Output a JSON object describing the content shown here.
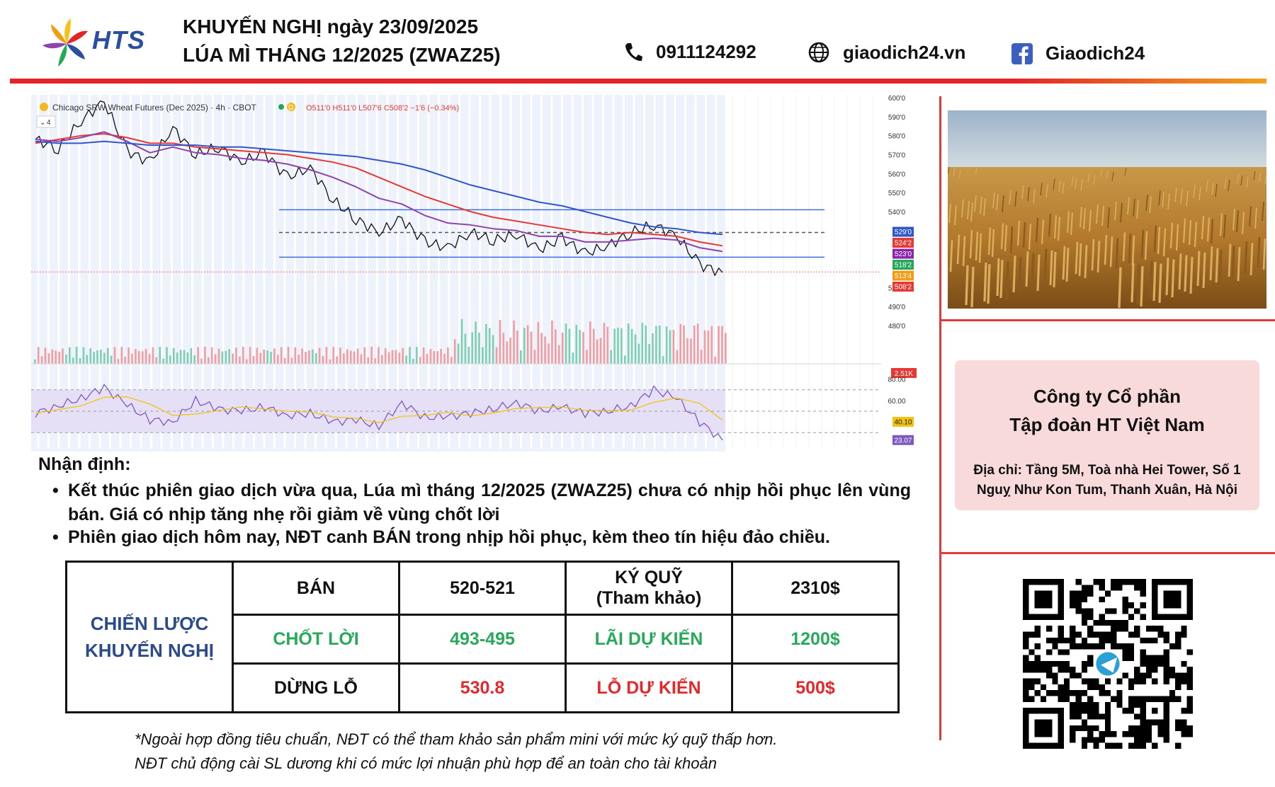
{
  "header": {
    "brand": "HTS",
    "title_line1": "KHUYẾN NGHỊ ngày 23/09/2025",
    "title_line2": "LÚA MÌ THÁNG 12/2025 (ZWAZ25)",
    "phone": "0911124292",
    "website": "giaodich24.vn",
    "facebook": "Giaodich24",
    "icons": [
      "phone-icon",
      "globe-icon",
      "facebook-icon"
    ],
    "accent_color": "#e42428"
  },
  "chart_data": {
    "type": "line",
    "title": "Chicago SRW Wheat Futures (Dec 2025) · 4h · CBOT",
    "interval_badge": "D",
    "ohlc": "O511'0 H511'0 L507'6 C508'2 −1'6 (−0.34%)",
    "indicator_count": "4",
    "y_ticks": [
      "600'0",
      "590'0",
      "580'0",
      "570'0",
      "560'0",
      "550'0",
      "540'0",
      "500'0",
      "490'0",
      "480'0"
    ],
    "ylim": [
      480,
      600
    ],
    "series": [
      {
        "values": [
          578,
          573,
          588,
          598,
          572,
          566,
          584,
          570,
          574,
          566,
          571,
          558,
          563,
          546,
          536,
          529,
          536,
          524,
          521,
          529,
          525,
          528,
          520,
          526,
          518,
          522,
          529,
          533,
          527,
          512,
          508
        ],
        "color": "#111111"
      },
      {
        "values": [
          576,
          578,
          580,
          581,
          579,
          576,
          576,
          574,
          573,
          572,
          571,
          570,
          568,
          566,
          563,
          558,
          553,
          548,
          544,
          540,
          537,
          535,
          533,
          531,
          529,
          528,
          529,
          528,
          527,
          524,
          522
        ],
        "color": "#e53935"
      },
      {
        "values": [
          578,
          577,
          579,
          582,
          577,
          571,
          574,
          571,
          570,
          568,
          567,
          565,
          562,
          558,
          553,
          547,
          544,
          538,
          534,
          533,
          531,
          530,
          527,
          527,
          524,
          524,
          525,
          526,
          525,
          521,
          519
        ],
        "color": "#8e44ad"
      },
      {
        "values": [
          577,
          576,
          576,
          577,
          576,
          575,
          575,
          575,
          574,
          574,
          573,
          572,
          571,
          570,
          569,
          567,
          565,
          562,
          558,
          554,
          551,
          548,
          545,
          543,
          540,
          537,
          534,
          532,
          531,
          529,
          528
        ],
        "color": "#3355cc"
      }
    ],
    "levels": [
      {
        "value": 541,
        "style": "solid",
        "color": "#3f6fd8"
      },
      {
        "value": 529,
        "style": "dashed",
        "color": "#555555"
      },
      {
        "value": 516,
        "style": "solid",
        "color": "#3f6fd8"
      }
    ],
    "price_labels": [
      {
        "text": "529'0",
        "color": "#2f57c8"
      },
      {
        "text": "524'2",
        "color": "#e53935"
      },
      {
        "text": "523'0",
        "color": "#8e24aa"
      },
      {
        "text": "518'2",
        "color": "#26a65b"
      },
      {
        "text": "513'4",
        "color": "#f39c12"
      },
      {
        "text": "508'2",
        "color": "#e53935"
      }
    ],
    "volume_label": "2.51K",
    "rsi": {
      "ticks": [
        "80.00",
        "60.00"
      ],
      "labels": [
        {
          "text": "40.10",
          "color": "#f1c40f"
        },
        {
          "text": "23.07",
          "color": "#7e57c2"
        }
      ],
      "values": [
        48,
        55,
        62,
        72,
        56,
        42,
        40,
        60,
        52,
        50,
        54,
        46,
        48,
        40,
        42,
        36,
        58,
        44,
        45,
        48,
        52,
        58,
        50,
        54,
        48,
        50,
        55,
        70,
        62,
        40,
        23
      ]
    }
  },
  "analysis": {
    "title": "Nhận định:",
    "bullets": [
      "Kết thúc phiên giao dịch vừa qua, Lúa mì tháng 12/2025 (ZWAZ25) chưa có nhịp hồi phục lên vùng bán. Giá có nhịp tăng nhẹ rồi giảm về vùng chốt lời",
      "Phiên giao dịch hôm nay, NĐT canh BÁN trong nhịp hồi phục, kèm theo tín hiệu đảo chiều."
    ]
  },
  "strategy": {
    "lead": "CHIẾN LƯỢC KHUYẾN NGHỊ",
    "sell_label": "BÁN",
    "sell_range": "520-521",
    "margin_label": "KÝ QUỸ",
    "margin_note": "(Tham khảo)",
    "margin_value": "2310$",
    "tp_label": "CHỐT LỜI",
    "tp_range": "493-495",
    "profit_label": "LÃI DỰ KIẾN",
    "profit_value": "1200$",
    "sl_label": "DỪNG LỖ",
    "sl_value": "530.8",
    "loss_label": "LỖ DỰ KIẾN",
    "loss_value": "500$"
  },
  "notes": [
    "*Ngoài hợp đồng tiêu chuẩn, NĐT có thể tham khảo sản phẩm mini với mức ký quỹ thấp hơn.",
    "NĐT chủ động cài SL dương khi có mức lợi nhuận phù hợp để an toàn cho tài khoản"
  ],
  "company": {
    "name_line1": "Công ty Cổ phần",
    "name_line2": "Tập đoàn HT Việt Nam",
    "address": "Địa chỉ: Tầng 5M, Toà nhà Hei Tower, Số 1 Nguỵ Như Kon Tum, Thanh Xuân, Hà Nội"
  }
}
